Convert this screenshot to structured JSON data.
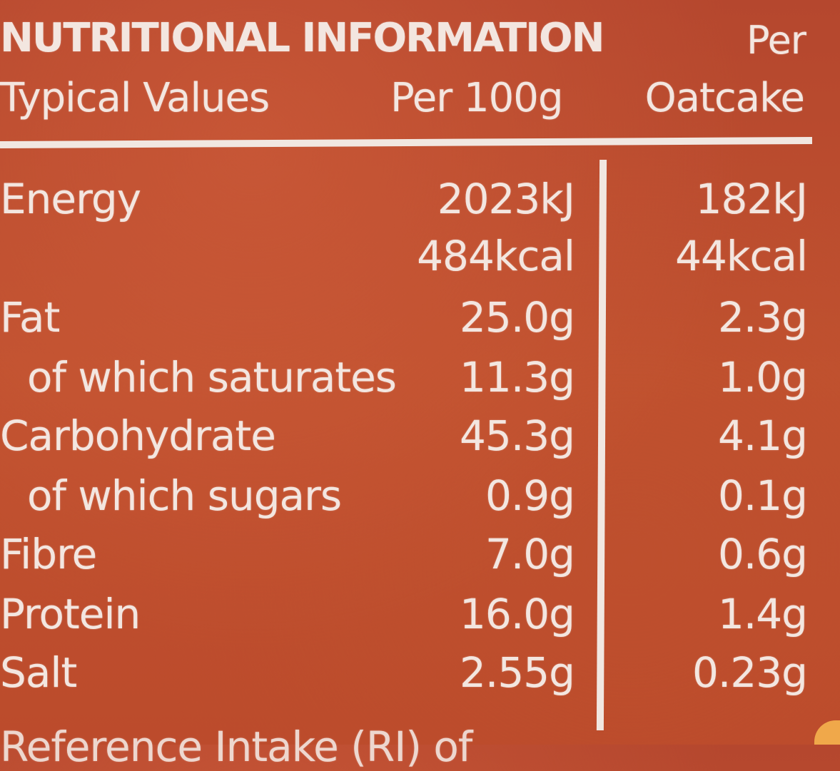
{
  "header": {
    "title": "NUTRITIONAL INFORMATION",
    "typical_values": "Typical Values",
    "per_100g": "Per 100g",
    "per_line1": "Per",
    "per_line2": "Oatcake"
  },
  "rows": [
    {
      "label": "Energy",
      "per100": "2023kJ",
      "perOatcake": "182kJ"
    },
    {
      "label": "",
      "per100": "484kcal",
      "perOatcake": "44kcal"
    },
    {
      "label": "Fat",
      "per100": "25.0g",
      "perOatcake": "2.3g"
    },
    {
      "label": "of which saturates",
      "per100": "11.3g",
      "perOatcake": "1.0g"
    },
    {
      "label": "Carbohydrate",
      "per100": "45.3g",
      "perOatcake": "4.1g"
    },
    {
      "label": "of which sugars",
      "per100": "0.9g",
      "perOatcake": "0.1g"
    },
    {
      "label": "Fibre",
      "per100": "7.0g",
      "perOatcake": "0.6g"
    },
    {
      "label": "Protein",
      "per100": "16.0g",
      "perOatcake": "1.4g"
    },
    {
      "label": "Salt",
      "per100": "2.55g",
      "perOatcake": "0.23g"
    }
  ],
  "footer": {
    "partial_text": "Reference Intake (RI) of"
  },
  "colors": {
    "background": "#b84a30",
    "text": "#f3e6e0",
    "accent": "#f0a84a"
  }
}
